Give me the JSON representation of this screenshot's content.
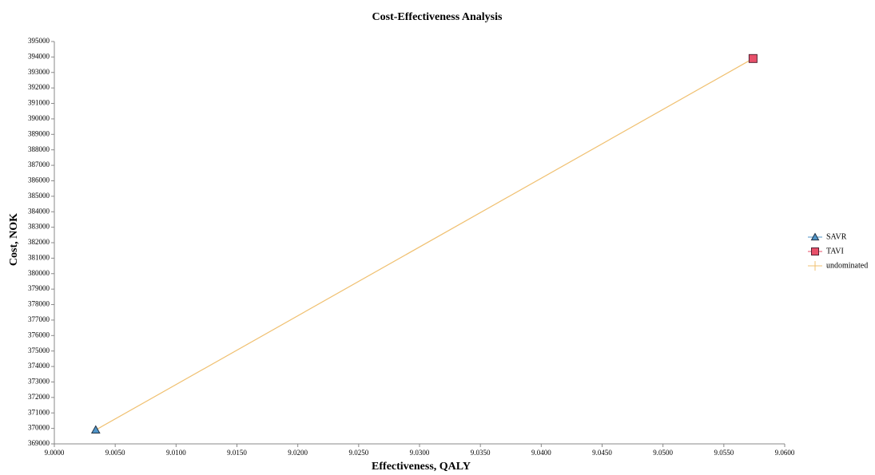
{
  "chart_data": {
    "type": "scatter",
    "title": "Cost-Effectiveness Analysis",
    "x_label": "Effectiveness, QALY",
    "y_label": "Cost, NOK",
    "xlim": [
      9.0,
      9.06
    ],
    "xticks": [
      {
        "value": 9.0,
        "label": "9.0000"
      },
      {
        "value": 9.005,
        "label": "9.0050"
      },
      {
        "value": 9.01,
        "label": "9.0100"
      },
      {
        "value": 9.015,
        "label": "9.0150"
      },
      {
        "value": 9.02,
        "label": "9.0200"
      },
      {
        "value": 9.025,
        "label": "9.0250"
      },
      {
        "value": 9.03,
        "label": "9.0300"
      },
      {
        "value": 9.035,
        "label": "9.0350"
      },
      {
        "value": 9.04,
        "label": "9.0400"
      },
      {
        "value": 9.045,
        "label": "9.0450"
      },
      {
        "value": 9.05,
        "label": "9.0500"
      },
      {
        "value": 9.055,
        "label": "9.0550"
      },
      {
        "value": 9.06,
        "label": "9.0600"
      }
    ],
    "ylim": [
      369000,
      395000
    ],
    "yticks": [
      369000,
      370000,
      371000,
      372000,
      373000,
      374000,
      375000,
      376000,
      377000,
      378000,
      379000,
      380000,
      381000,
      382000,
      383000,
      384000,
      385000,
      386000,
      387000,
      388000,
      389000,
      390000,
      391000,
      392000,
      393000,
      394000,
      395000
    ],
    "grid": false,
    "legend": "right",
    "series": [
      {
        "name": "SAVR",
        "color": "#4f94c8",
        "marker": "triangle",
        "x": [
          9.0034
        ],
        "values": [
          369900
        ]
      },
      {
        "name": "TAVI",
        "color": "#e8506a",
        "marker": "square",
        "x": [
          9.0574
        ],
        "values": [
          393900
        ]
      },
      {
        "name": "undominated",
        "color": "#f0c070",
        "marker": "line",
        "x": [
          9.0034,
          9.0574
        ],
        "values": [
          369900,
          393900
        ]
      }
    ]
  }
}
